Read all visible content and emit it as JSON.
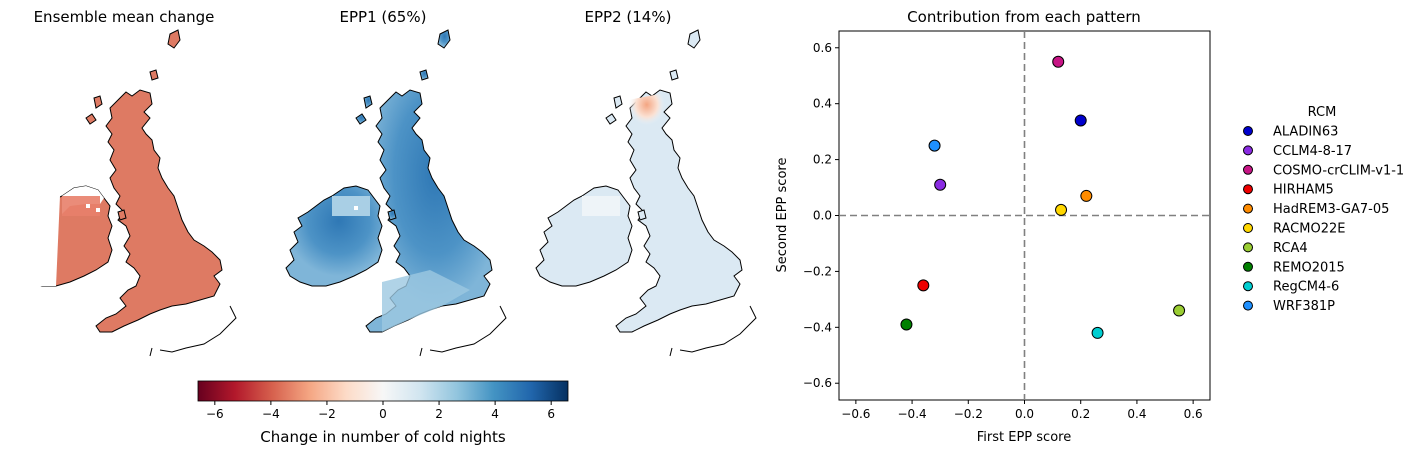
{
  "maps": {
    "panels": [
      {
        "title": "Ensemble mean change"
      },
      {
        "title": "EPP1 (65%)"
      },
      {
        "title": "EPP2 (14%)"
      }
    ],
    "colorbar": {
      "label": "Change in number of cold nights",
      "range": [
        -6.6,
        6.6
      ],
      "ticks": [
        "−6",
        "−4",
        "−2",
        "0",
        "2",
        "4",
        "6"
      ],
      "tick_values": [
        -6,
        -4,
        -2,
        0,
        2,
        4,
        6
      ],
      "colormap": "RdBu"
    }
  },
  "chart_data": {
    "type": "scatter",
    "title": "Contribution from each pattern",
    "xlabel": "First EPP score",
    "ylabel": "Second EPP score",
    "xlim": [
      -0.66,
      0.66
    ],
    "ylim": [
      -0.66,
      0.66
    ],
    "xticks": [
      -0.6,
      -0.4,
      -0.2,
      0.0,
      0.2,
      0.4,
      0.6
    ],
    "yticks": [
      -0.6,
      -0.4,
      -0.2,
      0.0,
      0.2,
      0.4,
      0.6
    ],
    "xtick_labels": [
      "−0.6",
      "−0.4",
      "−0.2",
      "0.0",
      "0.2",
      "0.4",
      "0.6"
    ],
    "ytick_labels": [
      "−0.6",
      "−0.4",
      "−0.2",
      "0.0",
      "0.2",
      "0.4",
      "0.6"
    ],
    "grid": false,
    "reference_lines": {
      "x": 0,
      "y": 0,
      "style": "dashed",
      "color": "#808080"
    },
    "legend": {
      "title": "RCM",
      "placement": "outside-right"
    },
    "series": [
      {
        "name": "ALADIN63",
        "color": "#0000cd",
        "x": 0.2,
        "y": 0.34
      },
      {
        "name": "CCLM4-8-17",
        "color": "#8a2be2",
        "x": -0.3,
        "y": 0.11
      },
      {
        "name": "COSMO-crCLIM-v1-1",
        "color": "#c71585",
        "x": 0.12,
        "y": 0.55
      },
      {
        "name": "HIRHAM5",
        "color": "#ee0000",
        "x": -0.36,
        "y": -0.25
      },
      {
        "name": "HadREM3-GA7-05",
        "color": "#ff8c00",
        "x": 0.22,
        "y": 0.07
      },
      {
        "name": "RACMO22E",
        "color": "#ffd700",
        "x": 0.13,
        "y": 0.02
      },
      {
        "name": "RCA4",
        "color": "#9acd32",
        "x": 0.55,
        "y": -0.34
      },
      {
        "name": "REMO2015",
        "color": "#008000",
        "x": -0.42,
        "y": -0.39
      },
      {
        "name": "RegCM4-6",
        "color": "#00ced1",
        "x": 0.26,
        "y": -0.42
      },
      {
        "name": "WRF381P",
        "color": "#1e90ff",
        "x": -0.32,
        "y": 0.25
      }
    ]
  }
}
